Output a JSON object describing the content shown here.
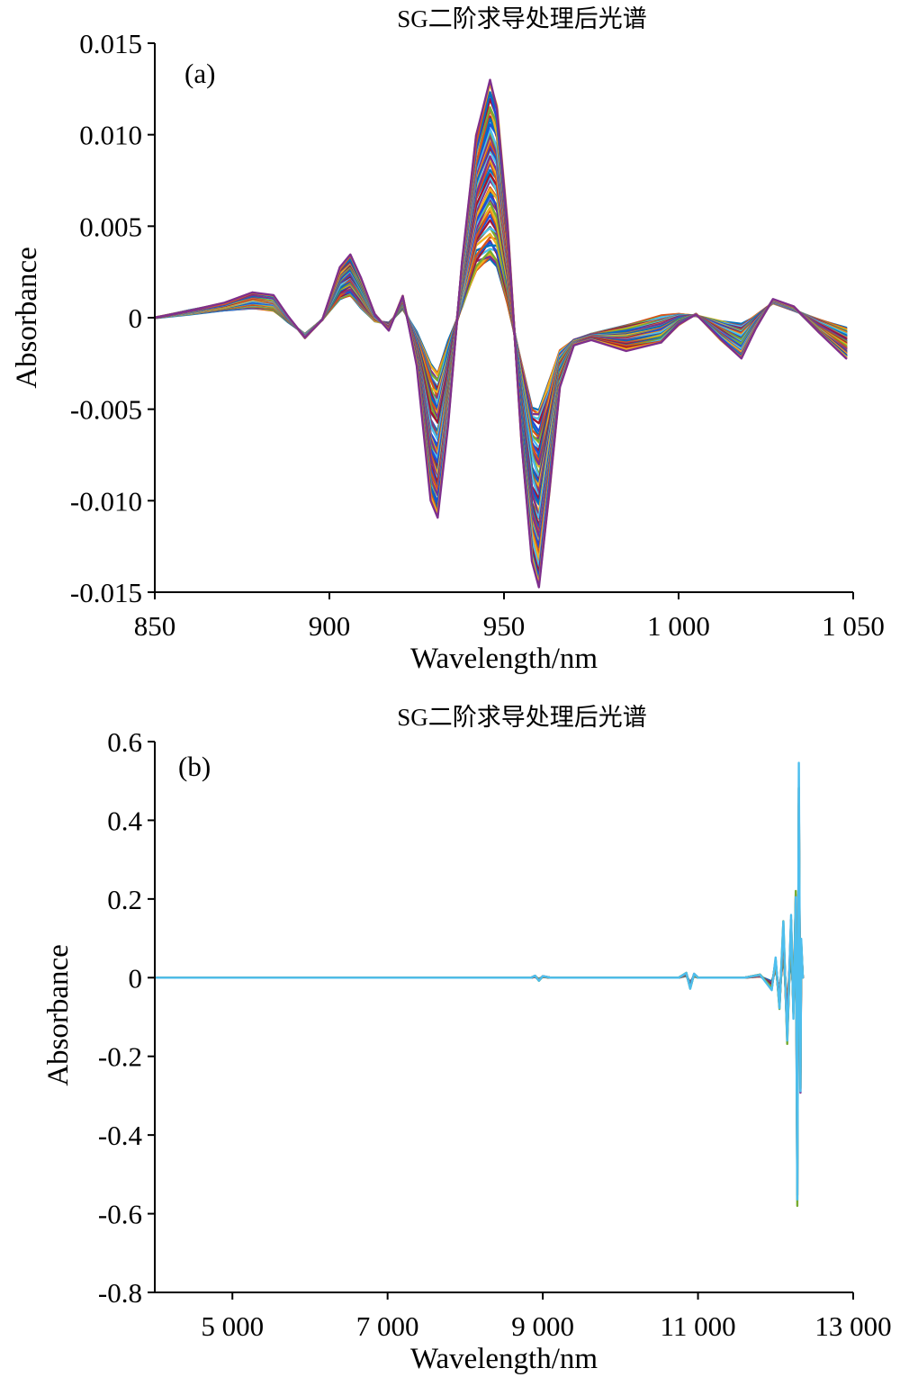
{
  "chart_data": [
    {
      "type": "line",
      "title": "SG二阶求导处理后光谱",
      "panel_label": "(a)",
      "xlabel": "Wavelength/nm",
      "ylabel": "Absorbance",
      "xlim": [
        850,
        1050
      ],
      "ylim": [
        -0.015,
        0.015
      ],
      "xticks": [
        850,
        900,
        950,
        1000,
        1050
      ],
      "xtick_labels": [
        "850",
        "900",
        "950",
        "1 000",
        "1 050"
      ],
      "yticks": [
        0.015,
        0.01,
        0.005,
        0,
        -0.005,
        -0.01,
        -0.015
      ],
      "ytick_labels": [
        "0.015",
        "0.010",
        "0.005",
        "0",
        "-0.005",
        "-0.010",
        "-0.015"
      ],
      "grid": false,
      "legend": "none",
      "series_count": 60,
      "palette": [
        "#0072BD",
        "#D95319",
        "#EDB120",
        "#7E2F8E",
        "#77AC30",
        "#4DBEEE",
        "#A2142F",
        "#1F4ED8"
      ],
      "x": [
        850,
        860,
        870,
        878,
        884,
        888,
        893,
        898,
        903,
        906,
        909,
        913,
        917,
        921,
        925,
        929,
        931,
        934,
        938,
        942,
        946,
        948,
        951,
        955,
        958,
        960,
        963,
        966,
        970,
        975,
        985,
        995,
        1000,
        1005,
        1012,
        1018,
        1022,
        1027,
        1033,
        1040,
        1048
      ],
      "profile_min": [
        0.0,
        0.0002,
        0.0004,
        0.0005,
        0.0004,
        -0.0002,
        -0.0009,
        -0.0001,
        0.001,
        0.0012,
        0.0006,
        -0.0002,
        -0.0003,
        0.0005,
        -0.0008,
        -0.0025,
        -0.003,
        -0.0014,
        0.0006,
        0.0025,
        0.0029,
        0.0027,
        0.0008,
        -0.0025,
        -0.0048,
        -0.005,
        -0.0035,
        -0.0018,
        -0.0012,
        -0.0009,
        -0.0004,
        0.0001,
        0.0002,
        0.0001,
        -0.0002,
        -0.0004,
        0.0001,
        0.0008,
        0.0004,
        -0.0001,
        -0.0006
      ],
      "profile_max": [
        0.0,
        0.0004,
        0.0008,
        0.0014,
        0.0012,
        0.0001,
        -0.0011,
        -0.0001,
        0.0027,
        0.0034,
        0.0022,
        0.0002,
        -0.0007,
        0.0012,
        -0.0026,
        -0.0098,
        -0.0108,
        -0.0058,
        0.0031,
        0.0099,
        0.0129,
        0.0116,
        0.0052,
        -0.0068,
        -0.0132,
        -0.0148,
        -0.0095,
        -0.0038,
        -0.0015,
        -0.0012,
        -0.0018,
        -0.0014,
        -0.0004,
        0.0002,
        -0.0012,
        -0.0022,
        -0.0006,
        0.001,
        0.0006,
        -0.0008,
        -0.0022
      ]
    },
    {
      "type": "line",
      "title": "SG二阶求导处理后光谱",
      "panel_label": "(b)",
      "xlabel": "Wavelength/nm",
      "ylabel": "Absorbance",
      "xlim": [
        4000,
        13000
      ],
      "ylim": [
        -0.8,
        0.6
      ],
      "xticks": [
        5000,
        7000,
        9000,
        11000,
        13000
      ],
      "xtick_labels": [
        "5 000",
        "7 000",
        "9 000",
        "11 000",
        "13 000"
      ],
      "yticks": [
        0.6,
        0.4,
        0.2,
        0,
        -0.2,
        -0.4,
        -0.6,
        -0.8
      ],
      "ytick_labels": [
        "0.6",
        "0.4",
        "0.2",
        "0",
        "-0.2",
        "-0.4",
        "-0.6",
        "-0.8"
      ],
      "grid": false,
      "legend": "none",
      "series_count": 14,
      "palette": [
        "#0072BD",
        "#D95319",
        "#EDB120",
        "#7E2F8E",
        "#77AC30",
        "#4DBEEE",
        "#A2142F",
        "#1F4ED8"
      ],
      "x": [
        4000,
        8850,
        8900,
        8950,
        9000,
        9100,
        10750,
        10850,
        10900,
        10950,
        11000,
        11600,
        11800,
        11950,
        12000,
        12050,
        12100,
        12150,
        12200,
        12230,
        12260,
        12280,
        12300,
        12320,
        12330,
        12350
      ],
      "y_max": [
        0.0,
        0.0,
        0.005,
        -0.008,
        0.004,
        0.0,
        0.0,
        0.012,
        -0.028,
        0.01,
        0.0,
        0.0,
        0.008,
        -0.03,
        0.05,
        -0.08,
        0.14,
        -0.17,
        0.16,
        -0.1,
        0.22,
        -0.58,
        0.53,
        -0.3,
        0.1,
        0.0
      ]
    }
  ]
}
